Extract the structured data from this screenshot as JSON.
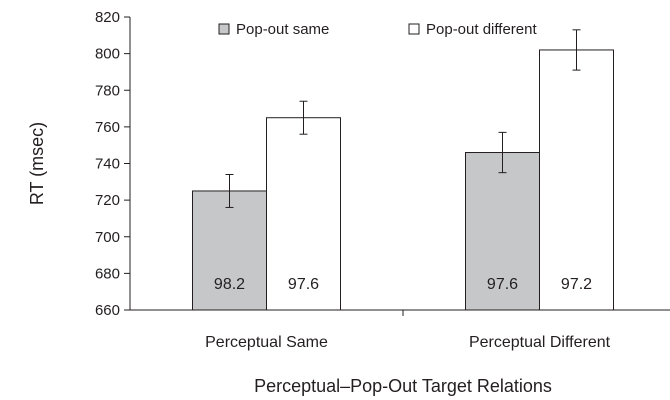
{
  "chart_data": {
    "type": "bar",
    "title": "",
    "xlabel": "Perceptual–Pop-Out Target Relations",
    "ylabel": "RT (msec)",
    "ylim": [
      660,
      820
    ],
    "yticks": [
      660,
      680,
      700,
      720,
      740,
      760,
      780,
      800,
      820
    ],
    "categories": [
      "Perceptual Same",
      "Perceptual Different"
    ],
    "legend_position": "top",
    "grid": false,
    "series": [
      {
        "name": "Pop-out same",
        "color": "#c6c7c9",
        "values": [
          725,
          746
        ],
        "error": [
          9,
          11
        ],
        "data_labels": [
          "98.2",
          "97.6"
        ]
      },
      {
        "name": "Pop-out different",
        "color": "#ffffff",
        "values": [
          765,
          802
        ],
        "error": [
          9,
          11
        ],
        "data_labels": [
          "97.6",
          "97.2"
        ]
      }
    ]
  }
}
